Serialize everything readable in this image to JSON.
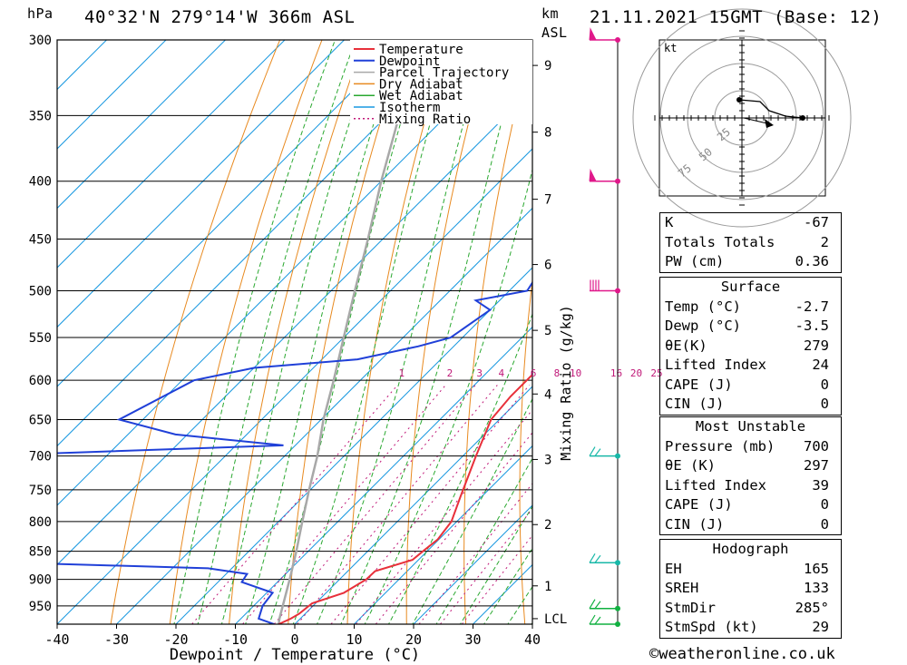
{
  "header": {
    "pressure_unit": "hPa",
    "location": "40°32'N  279°14'W  366m  ASL",
    "km_label": "km",
    "asl_label": "ASL",
    "datetime": "21.11.2021  15GMT  (Base: 12)"
  },
  "chart_data": {
    "type": "line",
    "subtype": "skew-T log-P diagram",
    "xlabel": "Dewpoint / Temperature (°C)",
    "ylabel": "hPa",
    "secondary_ylabel": "Mixing Ratio (g/kg)",
    "xlim": [
      -40,
      40
    ],
    "ylim": [
      986,
      300
    ],
    "x_ticks": [
      "-40",
      "-30",
      "-20",
      "-10",
      "0",
      "10",
      "20",
      "30",
      "40"
    ],
    "pressure_ticks": [
      300,
      350,
      400,
      450,
      500,
      550,
      600,
      650,
      700,
      750,
      800,
      850,
      900,
      950
    ],
    "height_ticks": [
      {
        "label": "9",
        "p": 316
      },
      {
        "label": "8",
        "p": 362
      },
      {
        "label": "7",
        "p": 415
      },
      {
        "label": "6",
        "p": 474
      },
      {
        "label": "5",
        "p": 542
      },
      {
        "label": "4",
        "p": 617
      },
      {
        "label": "3",
        "p": 705
      },
      {
        "label": "2",
        "p": 805
      },
      {
        "label": "1",
        "p": 912
      },
      {
        "label": "LCL",
        "p": 975
      }
    ],
    "mixing_ratio_labels": [
      "1",
      "2",
      "3",
      "4",
      "6",
      "8",
      "10",
      "16",
      "20",
      "25"
    ],
    "mixing_ratio_values": [
      1,
      2,
      3,
      4,
      6,
      8,
      10,
      16,
      20,
      25
    ],
    "isotherms_step_c": 10,
    "legend": [
      "Temperature",
      "Dewpoint",
      "Parcel Trajectory",
      "Dry Adiabat",
      "Wet Adiabat",
      "Isotherm",
      "Mixing Ratio"
    ],
    "legend_placement": "top-right",
    "colors": {
      "temperature": "#e8303a",
      "dewpoint": "#2040d8",
      "parcel": "#a8a8a8",
      "dry_adiabat": "#e88a20",
      "wet_adiabat": "#2aa830",
      "isotherm": "#1898e0",
      "mixing_ratio": "#c01878",
      "wind_high": "#e0188a",
      "wind_low": "#18b8a8"
    },
    "series": [
      {
        "name": "Temperature",
        "points": [
          [
            986,
            -2.7
          ],
          [
            975,
            -1.6
          ],
          [
            965,
            -1
          ],
          [
            945,
            -0.6
          ],
          [
            925,
            3
          ],
          [
            900,
            4.5
          ],
          [
            885,
            4.6
          ],
          [
            865,
            9
          ],
          [
            850,
            9.3
          ],
          [
            830,
            9.8
          ],
          [
            800,
            9.1
          ],
          [
            760,
            6.4
          ],
          [
            700,
            2.2
          ],
          [
            650,
            -1.4
          ],
          [
            620,
            -2
          ],
          [
            590,
            -2
          ],
          [
            580,
            -1.4
          ],
          [
            550,
            -5
          ],
          [
            500,
            -13
          ],
          [
            480,
            -15.2
          ],
          [
            450,
            -19
          ],
          [
            400,
            -25
          ],
          [
            370,
            -29
          ],
          [
            350,
            -33
          ],
          [
            300,
            -43
          ]
        ]
      },
      {
        "name": "Dewpoint",
        "points": [
          [
            986,
            -3.5
          ],
          [
            975,
            -7
          ],
          [
            950,
            -8.5
          ],
          [
            925,
            -9
          ],
          [
            905,
            -16
          ],
          [
            890,
            -16.5
          ],
          [
            880,
            -24
          ],
          [
            868,
            -64
          ],
          [
            850,
            -62
          ],
          [
            800,
            -61
          ],
          [
            780,
            -62
          ],
          [
            700,
            -82
          ],
          [
            685,
            -32
          ],
          [
            670,
            -52
          ],
          [
            650,
            -64
          ],
          [
            600,
            -58
          ],
          [
            585,
            -50
          ],
          [
            575,
            -34
          ],
          [
            560,
            -26
          ],
          [
            550,
            -22
          ],
          [
            520,
            -20
          ],
          [
            510,
            -24
          ],
          [
            500,
            -17
          ],
          [
            450,
            -20
          ],
          [
            400,
            -24
          ],
          [
            350,
            -27
          ],
          [
            320,
            -30
          ],
          [
            300,
            -33
          ]
        ]
      },
      {
        "name": "Parcel Trajectory",
        "points": [
          [
            986,
            -2.7
          ],
          [
            975,
            -3.5
          ],
          [
            900,
            -8.4
          ],
          [
            850,
            -12
          ],
          [
            800,
            -16
          ],
          [
            750,
            -20.2
          ],
          [
            700,
            -24.5
          ],
          [
            650,
            -29.6
          ],
          [
            600,
            -34.5
          ],
          [
            550,
            -40
          ],
          [
            500,
            -46
          ],
          [
            450,
            -52.5
          ],
          [
            400,
            -60
          ],
          [
            350,
            -68
          ],
          [
            300,
            -77
          ]
        ]
      }
    ],
    "wind_barbs_pressure": [
      300,
      400,
      500,
      700,
      870,
      955,
      986
    ]
  },
  "hodograph": {
    "unit": "kt",
    "ring_labels": [
      "25",
      "50",
      "75"
    ]
  },
  "indices": {
    "box1": [
      {
        "label": "K",
        "value": "-67"
      },
      {
        "label": "Totals Totals",
        "value": "2"
      },
      {
        "label": "PW (cm)",
        "value": "0.36"
      }
    ],
    "surface_title": "Surface",
    "surface": [
      {
        "label": "Temp (°C)",
        "value": "-2.7"
      },
      {
        "label": "Dewp (°C)",
        "value": "-3.5"
      },
      {
        "label": "θE(K)",
        "value": "279"
      },
      {
        "label": "Lifted Index",
        "value": "24"
      },
      {
        "label": "CAPE (J)",
        "value": "0"
      },
      {
        "label": "CIN (J)",
        "value": "0"
      }
    ],
    "mu_title": "Most Unstable",
    "most_unstable": [
      {
        "label": "Pressure (mb)",
        "value": "700"
      },
      {
        "label": "θE (K)",
        "value": "297"
      },
      {
        "label": "Lifted Index",
        "value": "39"
      },
      {
        "label": "CAPE (J)",
        "value": "0"
      },
      {
        "label": "CIN (J)",
        "value": "0"
      }
    ],
    "hodo_title": "Hodograph",
    "hodograph": [
      {
        "label": "EH",
        "value": "165"
      },
      {
        "label": "SREH",
        "value": "133"
      },
      {
        "label": "StmDir",
        "value": "285°"
      },
      {
        "label": "StmSpd (kt)",
        "value": "29"
      }
    ]
  },
  "footer": {
    "copyright": "©weatheronline.co.uk"
  }
}
